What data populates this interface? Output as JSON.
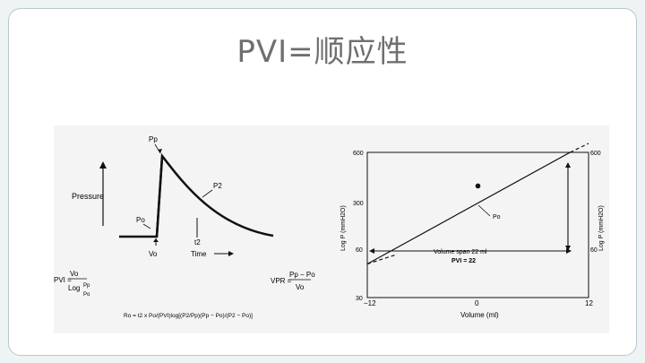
{
  "slide": {
    "title": "PVI=顺应性"
  },
  "left_panel": {
    "pressure_label": "Pressure",
    "time_label": "Time",
    "peak_label": "Pp",
    "p2_label": "P2",
    "p0_label": "Po",
    "v0_label": "Vo",
    "t2_label": "t2",
    "pvi_formula_lhs": "PVI =",
    "pvi_formula_num": "Vo",
    "pvi_formula_den": "Log",
    "pvi_formula_frac_num": "Pp",
    "pvi_formula_frac_den": "Po",
    "vpr_formula_lhs": "VPR =",
    "vpr_formula_num": "Pp − Po",
    "vpr_formula_den": "Vo",
    "ro_formula": "Ro = t2 x Po/(PVI)log[(P2/Pp)(Pp − Po)/(P2 − Po)]"
  },
  "right_panel": {
    "xlabel": "Volume (ml)",
    "ylabel_left": "Log P (mmH2O)",
    "ylabel_right": "Log P (mmH2O)",
    "point_label": "Po",
    "span_label": "Volume span 22 ml",
    "pvi_value_label": "PVI = 22"
  },
  "chart_data": {
    "type": "line",
    "title": "",
    "xlabel": "Volume (ml)",
    "ylabel": "Log P (mmH2O)",
    "x_ticks": [
      "−12",
      "0",
      "12"
    ],
    "y_ticks_left": [
      "600",
      "300",
      "60",
      "30"
    ],
    "y_ticks_right": [
      "600",
      "60"
    ],
    "xlim": [
      -12,
      12
    ],
    "ylim": [
      30,
      600
    ],
    "y_scale": "log",
    "series": [
      {
        "x": [
          -12,
          10
        ],
        "y": [
          60,
          600
        ]
      }
    ],
    "point": {
      "x": 0,
      "y": 300
    }
  },
  "colors": {
    "ink": "#111111",
    "title": "#6f6f6f",
    "panel": "#f4f4f4"
  }
}
